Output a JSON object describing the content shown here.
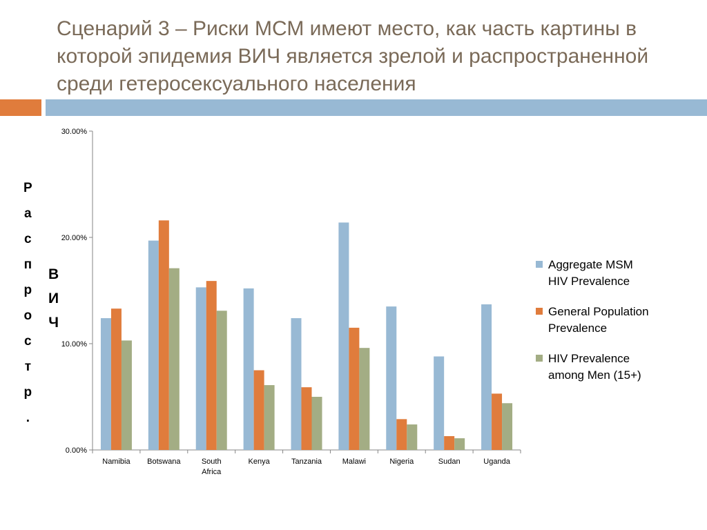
{
  "slide": {
    "title_lines": [
      "Сценарий 3 – Риски МСМ имеют место, как часть картины в",
      "которой эпидемия ВИЧ является зрелой и распространенной",
      "среди гетеросексуального населения"
    ],
    "vertical_label_1": [
      "Р",
      "а",
      "с",
      "п",
      "р",
      "о",
      "с",
      "т",
      "р",
      "."
    ],
    "vertical_label_2": [
      "В",
      "И",
      "Ч"
    ],
    "accent_colors": {
      "orange": "#e07c3c",
      "blue": "#98b9d4"
    }
  },
  "chart_data": {
    "type": "bar",
    "categories": [
      [
        "Namibia"
      ],
      [
        "Botswana"
      ],
      [
        "South",
        "Africa"
      ],
      [
        "Kenya"
      ],
      [
        "Tanzania"
      ],
      [
        "Malawi"
      ],
      [
        "Nigeria"
      ],
      [
        "Sudan"
      ],
      [
        "Uganda"
      ]
    ],
    "series": [
      {
        "name": "Aggregate MSM HIV Prevalence",
        "legend_lines": [
          "Aggregate MSM",
          "HIV Prevalence"
        ],
        "color": "#98b9d4",
        "values": [
          12.4,
          19.7,
          15.3,
          15.2,
          12.4,
          21.4,
          13.5,
          8.8,
          13.7
        ]
      },
      {
        "name": "General Population Prevalence",
        "legend_lines": [
          "General Population",
          "Prevalence"
        ],
        "color": "#e07c3c",
        "values": [
          13.3,
          21.6,
          15.9,
          7.5,
          5.9,
          11.5,
          2.9,
          1.3,
          5.3
        ]
      },
      {
        "name": "HIV Prevalence among Men (15+)",
        "legend_lines": [
          "HIV Prevalence",
          "among Men (15+)"
        ],
        "color": "#a3ad84",
        "values": [
          10.3,
          17.1,
          13.1,
          6.1,
          5.0,
          9.6,
          2.4,
          1.1,
          4.4
        ]
      }
    ],
    "y_ticks": [
      "0.00%",
      "10.00%",
      "20.00%",
      "30.00%"
    ],
    "ylim": [
      0,
      30
    ],
    "grid": false,
    "legend_position": "right"
  }
}
